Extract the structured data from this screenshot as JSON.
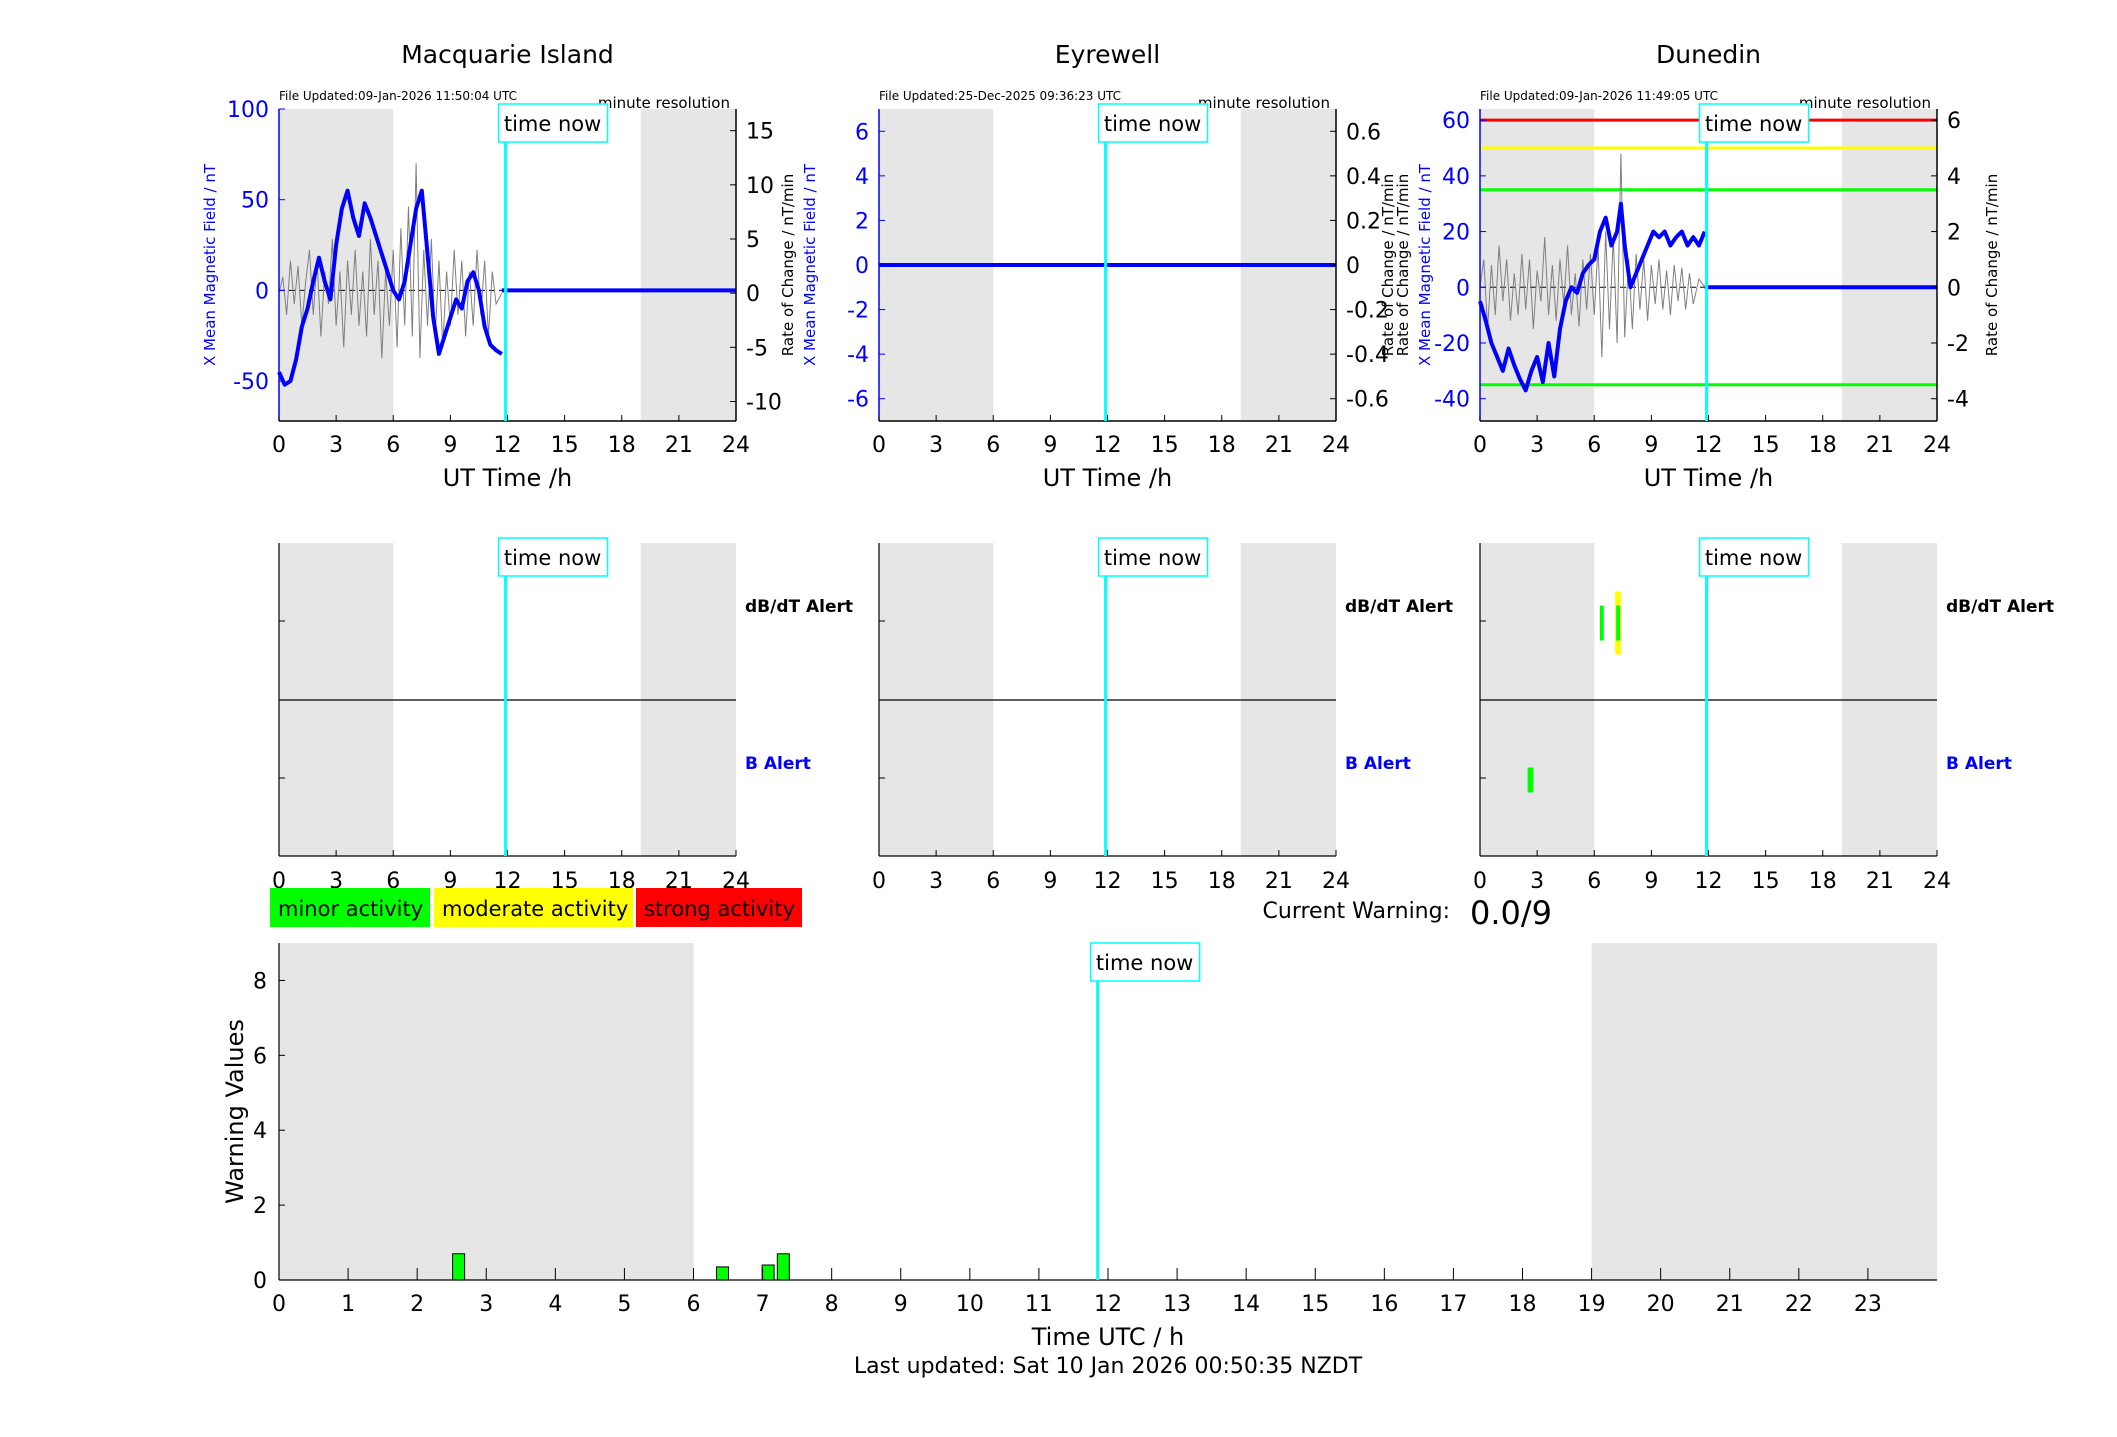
{
  "colors": {
    "x_trace": "#0000ff",
    "x_axis_blue": "#0000ff",
    "rate_trace": "#808080",
    "time_now": "#00ffff",
    "night_shade": "#e6e6e6",
    "minor": "#00ff00",
    "moderate": "#ffff00",
    "strong": "#ff0000"
  },
  "stations": [
    {
      "name": "Macquarie Island",
      "file_updated": "File Updated:09-Jan-2026 11:50:04 UTC",
      "resolution": "minute resolution",
      "left_ylabel": "X Mean Magnetic Field / nT",
      "right_ylabel": "Rate of Change / nT/min",
      "xlabel": "UT Time /h",
      "time_now_label": "time now",
      "ylim_left": [
        -72,
        100
      ],
      "ylim_right": [
        -11.8,
        17
      ],
      "left_ticks": [
        "100",
        "50",
        "0",
        "-50"
      ],
      "left_tick_values": [
        100,
        50,
        0,
        -50
      ],
      "right_ticks": [
        "15",
        "10",
        "5",
        "0",
        "-5",
        "-10"
      ],
      "right_tick_values": [
        15,
        10,
        5,
        0,
        -5,
        -10
      ],
      "x_ticks": [
        "0",
        "3",
        "6",
        "9",
        "12",
        "15",
        "18",
        "21",
        "24"
      ],
      "night": [
        [
          0,
          6
        ],
        [
          19,
          24
        ]
      ],
      "time_now": 11.9,
      "x_series": [
        [
          0,
          -45
        ],
        [
          0.3,
          -52
        ],
        [
          0.6,
          -50
        ],
        [
          0.9,
          -38
        ],
        [
          1.2,
          -20
        ],
        [
          1.5,
          -10
        ],
        [
          1.8,
          5
        ],
        [
          2.1,
          18
        ],
        [
          2.4,
          5
        ],
        [
          2.7,
          -5
        ],
        [
          3.0,
          25
        ],
        [
          3.3,
          45
        ],
        [
          3.6,
          55
        ],
        [
          3.9,
          40
        ],
        [
          4.2,
          30
        ],
        [
          4.5,
          48
        ],
        [
          4.8,
          40
        ],
        [
          5.1,
          30
        ],
        [
          5.4,
          20
        ],
        [
          5.7,
          10
        ],
        [
          6.0,
          0
        ],
        [
          6.3,
          -5
        ],
        [
          6.6,
          5
        ],
        [
          6.9,
          25
        ],
        [
          7.2,
          45
        ],
        [
          7.5,
          55
        ],
        [
          7.8,
          20
        ],
        [
          8.1,
          -15
        ],
        [
          8.4,
          -35
        ],
        [
          8.7,
          -25
        ],
        [
          9.0,
          -15
        ],
        [
          9.3,
          -5
        ],
        [
          9.6,
          -10
        ],
        [
          9.9,
          5
        ],
        [
          10.2,
          10
        ],
        [
          10.5,
          0
        ],
        [
          10.8,
          -20
        ],
        [
          11.1,
          -30
        ],
        [
          11.4,
          -33
        ],
        [
          11.7,
          -35
        ]
      ],
      "flat_from": 11.7,
      "flat_to": 24,
      "flat_value": 0,
      "rate_series": [
        [
          0,
          0
        ],
        [
          0.2,
          1.5
        ],
        [
          0.4,
          -2
        ],
        [
          0.6,
          3
        ],
        [
          0.8,
          -1
        ],
        [
          1.0,
          2.5
        ],
        [
          1.2,
          -3
        ],
        [
          1.4,
          1
        ],
        [
          1.6,
          4
        ],
        [
          1.8,
          -2
        ],
        [
          2.0,
          3
        ],
        [
          2.2,
          -4
        ],
        [
          2.4,
          2
        ],
        [
          2.6,
          -1
        ],
        [
          2.8,
          5
        ],
        [
          3.0,
          -3
        ],
        [
          3.2,
          2
        ],
        [
          3.4,
          -5
        ],
        [
          3.6,
          3
        ],
        [
          3.8,
          -2
        ],
        [
          4.0,
          4
        ],
        [
          4.2,
          -3
        ],
        [
          4.4,
          2
        ],
        [
          4.6,
          -4
        ],
        [
          4.8,
          5
        ],
        [
          5.0,
          -2
        ],
        [
          5.2,
          3
        ],
        [
          5.4,
          -6
        ],
        [
          5.6,
          2
        ],
        [
          5.8,
          -3
        ],
        [
          6.0,
          4
        ],
        [
          6.2,
          -5
        ],
        [
          6.4,
          6
        ],
        [
          6.6,
          -3
        ],
        [
          6.8,
          8
        ],
        [
          7.0,
          -4
        ],
        [
          7.2,
          12
        ],
        [
          7.4,
          -6
        ],
        [
          7.6,
          4
        ],
        [
          7.8,
          -3
        ],
        [
          8.0,
          5
        ],
        [
          8.2,
          -4
        ],
        [
          8.4,
          3
        ],
        [
          8.6,
          -5
        ],
        [
          8.8,
          2
        ],
        [
          9.0,
          -3
        ],
        [
          9.2,
          4
        ],
        [
          9.4,
          -2
        ],
        [
          9.6,
          3
        ],
        [
          9.8,
          -4
        ],
        [
          10.0,
          2
        ],
        [
          10.2,
          -3
        ],
        [
          10.4,
          4
        ],
        [
          10.6,
          -2
        ],
        [
          10.8,
          3
        ],
        [
          11.0,
          -4
        ],
        [
          11.2,
          2
        ],
        [
          11.4,
          -1
        ],
        [
          11.7,
          0
        ]
      ]
    },
    {
      "name": "Eyrewell",
      "file_updated": "File Updated:25-Dec-2025 09:36:23 UTC",
      "resolution": "minute resolution",
      "left_ylabel": "X Mean Magnetic Field / nT",
      "right_ylabel": "Rate of Change / nT/min",
      "xlabel": "UT Time /h",
      "time_now_label": "time now",
      "ylim_left": [
        -7,
        7
      ],
      "ylim_right": [
        -0.7,
        0.7
      ],
      "left_ticks": [
        "6",
        "4",
        "2",
        "0",
        "-2",
        "-4",
        "-6"
      ],
      "left_tick_values": [
        6,
        4,
        2,
        0,
        -2,
        -4,
        -6
      ],
      "right_ticks": [
        "0.6",
        "0.4",
        "0.2",
        "0",
        "-0.2",
        "-0.4",
        "-0.6"
      ],
      "right_tick_values": [
        0.6,
        0.4,
        0.2,
        0,
        -0.2,
        -0.4,
        -0.6
      ],
      "x_ticks": [
        "0",
        "3",
        "6",
        "9",
        "12",
        "15",
        "18",
        "21",
        "24"
      ],
      "night": [
        [
          0,
          6
        ],
        [
          19,
          24
        ]
      ],
      "time_now": 11.9,
      "x_series": [],
      "flat_from": 0,
      "flat_to": 24,
      "flat_value": 0,
      "rate_series": []
    },
    {
      "name": "Dunedin",
      "file_updated": "File Updated:09-Jan-2026 11:49:05 UTC",
      "resolution": "minute resolution",
      "left_ylabel": "X Mean Magnetic Field / nT",
      "right_ylabel": "Rate of Change / nT/min",
      "xlabel": "UT Time /h",
      "time_now_label": "time now",
      "ylim_left": [
        -48,
        64
      ],
      "ylim_right": [
        -4.8,
        6.4
      ],
      "left_ticks": [
        "60",
        "40",
        "20",
        "0",
        "-20",
        "-40"
      ],
      "left_tick_values": [
        60,
        40,
        20,
        0,
        -20,
        -40
      ],
      "right_ticks": [
        "6",
        "4",
        "2",
        "0",
        "-2",
        "-4"
      ],
      "right_tick_values": [
        6,
        4,
        2,
        0,
        -2,
        -4
      ],
      "x_ticks": [
        "0",
        "3",
        "6",
        "9",
        "12",
        "15",
        "18",
        "21",
        "24"
      ],
      "night": [
        [
          0,
          6
        ],
        [
          19,
          24
        ]
      ],
      "time_now": 11.9,
      "thresholds": [
        {
          "value": 60,
          "level": "strong"
        },
        {
          "value": 50,
          "level": "moderate"
        },
        {
          "value": 35,
          "level": "minor"
        },
        {
          "value": -35,
          "level": "minor"
        }
      ],
      "x_series": [
        [
          0,
          -5
        ],
        [
          0.3,
          -12
        ],
        [
          0.6,
          -20
        ],
        [
          0.9,
          -25
        ],
        [
          1.2,
          -30
        ],
        [
          1.5,
          -22
        ],
        [
          1.8,
          -28
        ],
        [
          2.1,
          -33
        ],
        [
          2.4,
          -37
        ],
        [
          2.7,
          -30
        ],
        [
          3.0,
          -25
        ],
        [
          3.3,
          -34
        ],
        [
          3.6,
          -20
        ],
        [
          3.9,
          -32
        ],
        [
          4.2,
          -15
        ],
        [
          4.5,
          -5
        ],
        [
          4.8,
          0
        ],
        [
          5.1,
          -2
        ],
        [
          5.4,
          5
        ],
        [
          5.7,
          8
        ],
        [
          6.0,
          10
        ],
        [
          6.3,
          20
        ],
        [
          6.6,
          25
        ],
        [
          6.9,
          15
        ],
        [
          7.2,
          20
        ],
        [
          7.4,
          30
        ],
        [
          7.6,
          15
        ],
        [
          7.9,
          0
        ],
        [
          8.2,
          5
        ],
        [
          8.5,
          10
        ],
        [
          8.8,
          15
        ],
        [
          9.1,
          20
        ],
        [
          9.4,
          18
        ],
        [
          9.7,
          20
        ],
        [
          10.0,
          15
        ],
        [
          10.3,
          18
        ],
        [
          10.6,
          20
        ],
        [
          10.9,
          15
        ],
        [
          11.2,
          18
        ],
        [
          11.5,
          15
        ],
        [
          11.8,
          20
        ]
      ],
      "flat_from": 11.8,
      "flat_to": 24,
      "flat_value": 0,
      "rate_series": [
        [
          0,
          0
        ],
        [
          0.2,
          1
        ],
        [
          0.4,
          -1.5
        ],
        [
          0.6,
          0.8
        ],
        [
          0.8,
          -1
        ],
        [
          1.0,
          1.5
        ],
        [
          1.2,
          -0.5
        ],
        [
          1.4,
          1
        ],
        [
          1.6,
          -1.2
        ],
        [
          1.8,
          0.5
        ],
        [
          2.0,
          -1
        ],
        [
          2.2,
          1.2
        ],
        [
          2.4,
          -0.8
        ],
        [
          2.6,
          1
        ],
        [
          2.8,
          -1.5
        ],
        [
          3.0,
          0.6
        ],
        [
          3.2,
          -0.5
        ],
        [
          3.4,
          1.8
        ],
        [
          3.6,
          -1
        ],
        [
          3.8,
          0.8
        ],
        [
          4.0,
          -1.2
        ],
        [
          4.2,
          1
        ],
        [
          4.4,
          -0.6
        ],
        [
          4.6,
          1.5
        ],
        [
          4.8,
          -1
        ],
        [
          5.0,
          0.5
        ],
        [
          5.2,
          -1.4
        ],
        [
          5.4,
          1
        ],
        [
          5.6,
          -0.8
        ],
        [
          5.8,
          1.2
        ],
        [
          6.0,
          -1
        ],
        [
          6.2,
          1.5
        ],
        [
          6.4,
          -2.5
        ],
        [
          6.6,
          2
        ],
        [
          6.8,
          -1.5
        ],
        [
          7.0,
          1.8
        ],
        [
          7.2,
          -2
        ],
        [
          7.4,
          4.8
        ],
        [
          7.6,
          -1.8
        ],
        [
          7.8,
          1
        ],
        [
          8.0,
          -1.5
        ],
        [
          8.2,
          1.2
        ],
        [
          8.4,
          -0.8
        ],
        [
          8.6,
          1
        ],
        [
          8.8,
          -1.2
        ],
        [
          9.0,
          0.8
        ],
        [
          9.2,
          -0.6
        ],
        [
          9.4,
          1
        ],
        [
          9.6,
          -0.8
        ],
        [
          9.8,
          0.6
        ],
        [
          10.0,
          -1
        ],
        [
          10.2,
          0.8
        ],
        [
          10.4,
          -0.5
        ],
        [
          10.6,
          0.7
        ],
        [
          10.8,
          -0.8
        ],
        [
          11.0,
          0.5
        ],
        [
          11.2,
          -0.6
        ],
        [
          11.5,
          0.3
        ],
        [
          11.8,
          0
        ]
      ]
    }
  ],
  "alert_panels": [
    {
      "dbdt_label": "dB/dT Alert",
      "b_label": "B Alert",
      "time_now_label": "time now",
      "night": [
        [
          0,
          6
        ],
        [
          19,
          24
        ]
      ],
      "time_now": 11.9,
      "x_ticks": [
        "0",
        "3",
        "6",
        "9",
        "12",
        "15",
        "18",
        "21",
        "24"
      ],
      "dbdt_bars": [],
      "b_bars": []
    },
    {
      "dbdt_label": "dB/dT Alert",
      "b_label": "B Alert",
      "time_now_label": "time now",
      "night": [
        [
          0,
          6
        ],
        [
          19,
          24
        ]
      ],
      "time_now": 11.9,
      "x_ticks": [
        "0",
        "3",
        "6",
        "9",
        "12",
        "15",
        "18",
        "21",
        "24"
      ],
      "dbdt_bars": [],
      "b_bars": []
    },
    {
      "dbdt_label": "dB/dT Alert",
      "b_label": "B Alert",
      "time_now_label": "time now",
      "night": [
        [
          0,
          6
        ],
        [
          19,
          24
        ]
      ],
      "time_now": 11.9,
      "x_ticks": [
        "0",
        "3",
        "6",
        "9",
        "12",
        "15",
        "18",
        "21",
        "24"
      ],
      "dbdt_bars": [
        {
          "start": 6.3,
          "end": 6.5,
          "level": "minor",
          "low": 0.25,
          "high": 0.75
        },
        {
          "start": 7.1,
          "end": 7.4,
          "level": "moderate",
          "low": 0.05,
          "high": 0.95
        },
        {
          "start": 7.15,
          "end": 7.35,
          "level": "minor",
          "low": 0.25,
          "high": 0.75
        }
      ],
      "b_bars": [
        {
          "start": 2.5,
          "end": 2.8,
          "level": "minor",
          "low": 0.25,
          "high": 0.75
        }
      ]
    }
  ],
  "legend": [
    {
      "label": "minor activity",
      "level": "minor"
    },
    {
      "label": "moderate activity",
      "level": "moderate"
    },
    {
      "label": "strong activity",
      "level": "strong"
    }
  ],
  "current_warning": {
    "label": "Current Warning:",
    "value": "0.0/9"
  },
  "chart_data": {
    "type": "bar",
    "title": "",
    "xlabel": "Time UTC / h",
    "ylabel": "Warning Values",
    "xlim": [
      0,
      24
    ],
    "ylim": [
      0,
      9
    ],
    "x_ticks": [
      "0",
      "1",
      "2",
      "3",
      "4",
      "5",
      "6",
      "7",
      "8",
      "9",
      "10",
      "11",
      "12",
      "13",
      "14",
      "15",
      "16",
      "17",
      "18",
      "19",
      "20",
      "21",
      "22",
      "23"
    ],
    "y_ticks": [
      "0",
      "2",
      "4",
      "6",
      "8"
    ],
    "night": [
      [
        0,
        6
      ],
      [
        19,
        24
      ]
    ],
    "time_now": 11.85,
    "time_now_label": "time now",
    "bars": [
      {
        "x": 2.6,
        "value": 0.7
      },
      {
        "x": 6.42,
        "value": 0.35
      },
      {
        "x": 7.08,
        "value": 0.4
      },
      {
        "x": 7.3,
        "value": 0.7
      }
    ]
  },
  "footer": "Last updated: Sat 10 Jan 2026 00:50:35 NZDT"
}
